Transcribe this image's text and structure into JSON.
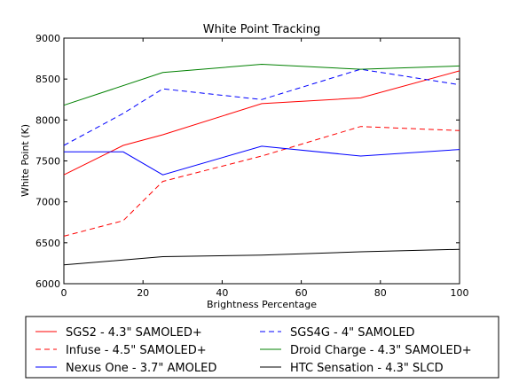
{
  "chart_data": {
    "type": "line",
    "title": "White Point Tracking",
    "xlabel": "Brightness Percentage",
    "ylabel": "White Point (K)",
    "xlim": [
      0,
      100
    ],
    "ylim": [
      6000,
      9000
    ],
    "xticks": [
      0,
      20,
      40,
      60,
      80,
      100
    ],
    "yticks": [
      6000,
      6500,
      7000,
      7500,
      8000,
      8500,
      9000
    ],
    "grid": false,
    "legend_position": "below",
    "series": [
      {
        "name": "SGS2 - 4.3\" SAMOLED+",
        "color": "#ff0000",
        "dash": "solid",
        "x": [
          0,
          15,
          25,
          50,
          75,
          100
        ],
        "y": [
          7330,
          7690,
          7820,
          8200,
          8270,
          8600
        ]
      },
      {
        "name": "SGS4G - 4\" SAMOLED",
        "color": "#0000ff",
        "dash": "dashed",
        "x": [
          0,
          15,
          25,
          50,
          75,
          100
        ],
        "y": [
          7690,
          8080,
          8380,
          8250,
          8620,
          8430
        ]
      },
      {
        "name": "Infuse - 4.5\" SAMOLED+",
        "color": "#ff0000",
        "dash": "dashed",
        "x": [
          0,
          15,
          25,
          50,
          75,
          100
        ],
        "y": [
          6580,
          6770,
          7250,
          7560,
          7920,
          7870
        ]
      },
      {
        "name": "Droid Charge - 4.3\" SAMOLED+",
        "color": "#008000",
        "dash": "solid",
        "x": [
          0,
          25,
          50,
          75,
          100
        ],
        "y": [
          8180,
          8580,
          8680,
          8620,
          8660
        ]
      },
      {
        "name": "Nexus One - 3.7\" AMOLED",
        "color": "#0000ff",
        "dash": "solid",
        "x": [
          0,
          15,
          25,
          50,
          75,
          100
        ],
        "y": [
          7610,
          7610,
          7330,
          7680,
          7560,
          7640
        ]
      },
      {
        "name": "HTC Sensation - 4.3\" SLCD",
        "color": "#000000",
        "dash": "solid",
        "x": [
          0,
          25,
          50,
          75,
          100
        ],
        "y": [
          6230,
          6330,
          6350,
          6390,
          6420
        ]
      }
    ]
  }
}
